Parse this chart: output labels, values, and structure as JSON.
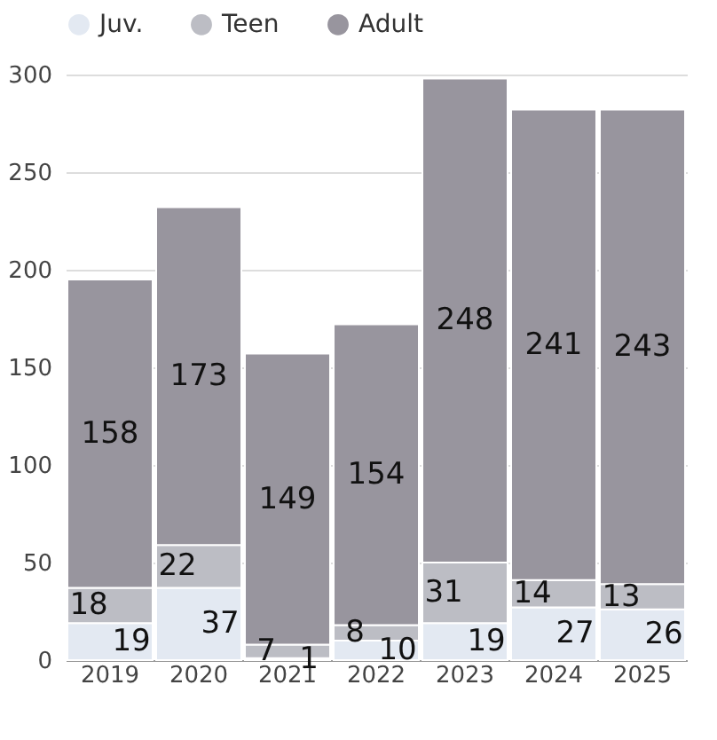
{
  "chart_data": {
    "type": "bar",
    "stacked": true,
    "categories": [
      "2019",
      "2020",
      "2021",
      "2022",
      "2023",
      "2024",
      "2025"
    ],
    "series": [
      {
        "name": "Juv.",
        "color": "#e3e9f2",
        "values": [
          19,
          37,
          1,
          10,
          19,
          27,
          26
        ]
      },
      {
        "name": "Teen",
        "color": "#bcbdc4",
        "values": [
          18,
          22,
          7,
          8,
          31,
          14,
          13
        ]
      },
      {
        "name": "Adult",
        "color": "#98959e",
        "values": [
          158,
          173,
          149,
          154,
          248,
          241,
          243
        ]
      }
    ],
    "ylim": [
      0,
      300
    ],
    "yticks": [
      0,
      50,
      100,
      150,
      200,
      250,
      300
    ],
    "grid": "y",
    "legend": "top",
    "data_labels": true
  }
}
